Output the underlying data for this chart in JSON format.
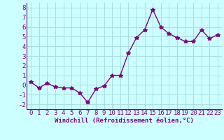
{
  "x": [
    0,
    1,
    2,
    3,
    4,
    5,
    6,
    7,
    8,
    9,
    10,
    11,
    12,
    13,
    14,
    15,
    16,
    17,
    18,
    19,
    20,
    21,
    22,
    23
  ],
  "y": [
    0.3,
    -0.3,
    0.2,
    -0.2,
    -0.3,
    -0.3,
    -0.8,
    -1.8,
    -0.4,
    -0.1,
    1.0,
    1.0,
    3.3,
    4.9,
    5.7,
    7.8,
    6.0,
    5.3,
    4.9,
    4.5,
    4.5,
    5.7,
    4.8,
    5.2
  ],
  "line_color": "#800080",
  "marker": "*",
  "marker_size": 4,
  "line_width": 1.0,
  "bg_color": "#ccffff",
  "grid_color": "#aadddd",
  "xlabel": "Windchill (Refroidissement éolien,°C)",
  "xlabel_fontsize": 6.5,
  "tick_fontsize": 6.5,
  "yticks": [
    -2,
    -1,
    0,
    1,
    2,
    3,
    4,
    5,
    6,
    7,
    8
  ],
  "xticks": [
    0,
    1,
    2,
    3,
    4,
    5,
    6,
    7,
    8,
    9,
    10,
    11,
    12,
    13,
    14,
    15,
    16,
    17,
    18,
    19,
    20,
    21,
    22,
    23
  ],
  "ylim": [
    -2.5,
    8.5
  ],
  "xlim": [
    -0.5,
    23.5
  ]
}
